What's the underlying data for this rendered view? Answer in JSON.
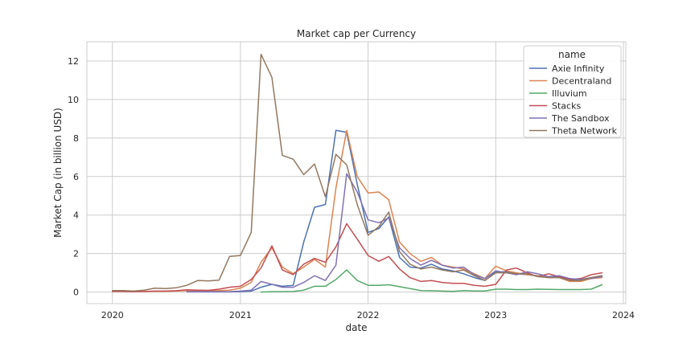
{
  "chart_data": {
    "type": "line",
    "title": "Market cap per Currency",
    "xlabel": "date",
    "ylabel": "Market Cap (in billion USD)",
    "xlim": [
      "2019-10-20",
      "2024-01-08"
    ],
    "ylim": [
      -0.6,
      13.0
    ],
    "x_ticks": [
      "2020",
      "2021",
      "2022",
      "2023",
      "2024"
    ],
    "y_ticks": [
      "0",
      "2",
      "4",
      "6",
      "8",
      "10",
      "12"
    ],
    "grid": true,
    "legend": {
      "title": "name",
      "placement": "top-right"
    },
    "series": [
      {
        "name": "Axie Infinity",
        "color": "#4c72b0",
        "points": [
          [
            "2020-08-01",
            0.01
          ],
          [
            "2020-09-01",
            0.01
          ],
          [
            "2020-10-01",
            0.01
          ],
          [
            "2020-11-01",
            0.01
          ],
          [
            "2020-12-01",
            0.01
          ],
          [
            "2021-01-01",
            0.02
          ],
          [
            "2021-02-01",
            0.05
          ],
          [
            "2021-03-01",
            0.25
          ],
          [
            "2021-04-01",
            0.4
          ],
          [
            "2021-05-01",
            0.3
          ],
          [
            "2021-06-01",
            0.35
          ],
          [
            "2021-07-01",
            2.6
          ],
          [
            "2021-08-01",
            4.4
          ],
          [
            "2021-09-01",
            4.55
          ],
          [
            "2021-10-01",
            8.4
          ],
          [
            "2021-11-01",
            8.3
          ],
          [
            "2021-12-01",
            5.6
          ],
          [
            "2022-01-01",
            3.1
          ],
          [
            "2022-02-01",
            3.3
          ],
          [
            "2022-03-01",
            3.9
          ],
          [
            "2022-04-01",
            1.8
          ],
          [
            "2022-05-01",
            1.3
          ],
          [
            "2022-06-01",
            1.25
          ],
          [
            "2022-07-01",
            1.45
          ],
          [
            "2022-08-01",
            1.2
          ],
          [
            "2022-09-01",
            1.1
          ],
          [
            "2022-10-01",
            0.95
          ],
          [
            "2022-11-01",
            0.75
          ],
          [
            "2022-12-01",
            0.6
          ],
          [
            "2023-01-01",
            1.05
          ],
          [
            "2023-02-01",
            1.05
          ],
          [
            "2023-03-01",
            0.95
          ],
          [
            "2023-04-01",
            0.9
          ],
          [
            "2023-05-01",
            0.85
          ],
          [
            "2023-06-01",
            0.8
          ],
          [
            "2023-07-01",
            0.8
          ],
          [
            "2023-08-01",
            0.65
          ],
          [
            "2023-09-01",
            0.65
          ],
          [
            "2023-10-01",
            0.75
          ],
          [
            "2023-11-01",
            0.85
          ]
        ]
      },
      {
        "name": "Decentraland",
        "color": "#dd8452",
        "points": [
          [
            "2020-01-01",
            0.03
          ],
          [
            "2020-02-01",
            0.03
          ],
          [
            "2020-03-01",
            0.02
          ],
          [
            "2020-04-01",
            0.03
          ],
          [
            "2020-05-01",
            0.04
          ],
          [
            "2020-06-01",
            0.04
          ],
          [
            "2020-07-01",
            0.05
          ],
          [
            "2020-08-01",
            0.08
          ],
          [
            "2020-09-01",
            0.08
          ],
          [
            "2020-10-01",
            0.07
          ],
          [
            "2020-11-01",
            0.08
          ],
          [
            "2020-12-01",
            0.1
          ],
          [
            "2021-01-01",
            0.2
          ],
          [
            "2021-02-01",
            0.5
          ],
          [
            "2021-03-01",
            1.55
          ],
          [
            "2021-04-01",
            2.3
          ],
          [
            "2021-05-01",
            1.3
          ],
          [
            "2021-06-01",
            0.95
          ],
          [
            "2021-07-01",
            1.3
          ],
          [
            "2021-08-01",
            1.7
          ],
          [
            "2021-09-01",
            1.3
          ],
          [
            "2021-10-01",
            5.4
          ],
          [
            "2021-11-01",
            8.4
          ],
          [
            "2021-12-01",
            6.0
          ],
          [
            "2022-01-01",
            5.15
          ],
          [
            "2022-02-01",
            5.2
          ],
          [
            "2022-03-01",
            4.8
          ],
          [
            "2022-04-01",
            2.6
          ],
          [
            "2022-05-01",
            2.0
          ],
          [
            "2022-06-01",
            1.6
          ],
          [
            "2022-07-01",
            1.8
          ],
          [
            "2022-08-01",
            1.4
          ],
          [
            "2022-09-01",
            1.3
          ],
          [
            "2022-10-01",
            1.2
          ],
          [
            "2022-11-01",
            0.95
          ],
          [
            "2022-12-01",
            0.7
          ],
          [
            "2023-01-01",
            1.35
          ],
          [
            "2023-02-01",
            1.1
          ],
          [
            "2023-03-01",
            1.0
          ],
          [
            "2023-04-01",
            0.9
          ],
          [
            "2023-05-01",
            0.85
          ],
          [
            "2023-06-01",
            0.75
          ],
          [
            "2023-07-01",
            0.75
          ],
          [
            "2023-08-01",
            0.55
          ],
          [
            "2023-09-01",
            0.55
          ],
          [
            "2023-10-01",
            0.7
          ],
          [
            "2023-11-01",
            0.75
          ]
        ]
      },
      {
        "name": "Illuvium",
        "color": "#55a868",
        "points": [
          [
            "2021-03-01",
            0.0
          ],
          [
            "2021-04-01",
            0.02
          ],
          [
            "2021-05-01",
            0.02
          ],
          [
            "2021-06-01",
            0.03
          ],
          [
            "2021-07-01",
            0.1
          ],
          [
            "2021-08-01",
            0.3
          ],
          [
            "2021-09-01",
            0.3
          ],
          [
            "2021-10-01",
            0.65
          ],
          [
            "2021-11-01",
            1.15
          ],
          [
            "2021-12-01",
            0.6
          ],
          [
            "2022-01-01",
            0.35
          ],
          [
            "2022-02-01",
            0.35
          ],
          [
            "2022-03-01",
            0.38
          ],
          [
            "2022-04-01",
            0.28
          ],
          [
            "2022-05-01",
            0.18
          ],
          [
            "2022-06-01",
            0.08
          ],
          [
            "2022-07-01",
            0.07
          ],
          [
            "2022-08-01",
            0.05
          ],
          [
            "2022-09-01",
            0.04
          ],
          [
            "2022-10-01",
            0.08
          ],
          [
            "2022-11-01",
            0.06
          ],
          [
            "2022-12-01",
            0.06
          ],
          [
            "2023-01-01",
            0.15
          ],
          [
            "2023-02-01",
            0.15
          ],
          [
            "2023-03-01",
            0.13
          ],
          [
            "2023-04-01",
            0.13
          ],
          [
            "2023-05-01",
            0.15
          ],
          [
            "2023-06-01",
            0.14
          ],
          [
            "2023-07-01",
            0.13
          ],
          [
            "2023-08-01",
            0.13
          ],
          [
            "2023-09-01",
            0.13
          ],
          [
            "2023-10-01",
            0.15
          ],
          [
            "2023-11-01",
            0.38
          ]
        ]
      },
      {
        "name": "Stacks",
        "color": "#c44e52",
        "points": [
          [
            "2020-01-01",
            0.04
          ],
          [
            "2020-02-01",
            0.03
          ],
          [
            "2020-03-01",
            0.02
          ],
          [
            "2020-04-01",
            0.03
          ],
          [
            "2020-05-01",
            0.05
          ],
          [
            "2020-06-01",
            0.05
          ],
          [
            "2020-07-01",
            0.07
          ],
          [
            "2020-08-01",
            0.12
          ],
          [
            "2020-09-01",
            0.1
          ],
          [
            "2020-10-01",
            0.09
          ],
          [
            "2020-11-01",
            0.15
          ],
          [
            "2020-12-01",
            0.25
          ],
          [
            "2021-01-01",
            0.3
          ],
          [
            "2021-02-01",
            0.65
          ],
          [
            "2021-03-01",
            1.25
          ],
          [
            "2021-04-01",
            2.4
          ],
          [
            "2021-05-01",
            1.15
          ],
          [
            "2021-06-01",
            0.9
          ],
          [
            "2021-07-01",
            1.45
          ],
          [
            "2021-08-01",
            1.75
          ],
          [
            "2021-09-01",
            1.55
          ],
          [
            "2021-10-01",
            2.35
          ],
          [
            "2021-11-01",
            3.55
          ],
          [
            "2021-12-01",
            2.75
          ],
          [
            "2022-01-01",
            1.9
          ],
          [
            "2022-02-01",
            1.6
          ],
          [
            "2022-03-01",
            1.85
          ],
          [
            "2022-04-01",
            1.2
          ],
          [
            "2022-05-01",
            0.75
          ],
          [
            "2022-06-01",
            0.55
          ],
          [
            "2022-07-01",
            0.6
          ],
          [
            "2022-08-01",
            0.5
          ],
          [
            "2022-09-01",
            0.45
          ],
          [
            "2022-10-01",
            0.45
          ],
          [
            "2022-11-01",
            0.35
          ],
          [
            "2022-12-01",
            0.3
          ],
          [
            "2023-01-01",
            0.4
          ],
          [
            "2023-02-01",
            1.15
          ],
          [
            "2023-03-01",
            1.25
          ],
          [
            "2023-04-01",
            1.0
          ],
          [
            "2023-05-01",
            0.8
          ],
          [
            "2023-06-01",
            0.95
          ],
          [
            "2023-07-01",
            0.8
          ],
          [
            "2023-08-01",
            0.65
          ],
          [
            "2023-09-01",
            0.7
          ],
          [
            "2023-10-01",
            0.9
          ],
          [
            "2023-11-01",
            1.0
          ]
        ]
      },
      {
        "name": "The Sandbox",
        "color": "#8172b3",
        "points": [
          [
            "2020-08-01",
            0.02
          ],
          [
            "2020-09-01",
            0.02
          ],
          [
            "2020-10-01",
            0.02
          ],
          [
            "2020-11-01",
            0.02
          ],
          [
            "2020-12-01",
            0.02
          ],
          [
            "2021-01-01",
            0.05
          ],
          [
            "2021-02-01",
            0.1
          ],
          [
            "2021-03-01",
            0.55
          ],
          [
            "2021-04-01",
            0.4
          ],
          [
            "2021-05-01",
            0.25
          ],
          [
            "2021-06-01",
            0.25
          ],
          [
            "2021-07-01",
            0.5
          ],
          [
            "2021-08-01",
            0.85
          ],
          [
            "2021-09-01",
            0.6
          ],
          [
            "2021-10-01",
            1.4
          ],
          [
            "2021-11-01",
            6.15
          ],
          [
            "2021-12-01",
            5.2
          ],
          [
            "2022-01-01",
            3.75
          ],
          [
            "2022-02-01",
            3.6
          ],
          [
            "2022-03-01",
            3.85
          ],
          [
            "2022-04-01",
            2.3
          ],
          [
            "2022-05-01",
            1.75
          ],
          [
            "2022-06-01",
            1.4
          ],
          [
            "2022-07-01",
            1.65
          ],
          [
            "2022-08-01",
            1.4
          ],
          [
            "2022-09-01",
            1.25
          ],
          [
            "2022-10-01",
            1.3
          ],
          [
            "2022-11-01",
            0.9
          ],
          [
            "2022-12-01",
            0.7
          ],
          [
            "2023-01-01",
            1.1
          ],
          [
            "2023-02-01",
            1.0
          ],
          [
            "2023-03-01",
            0.9
          ],
          [
            "2023-04-01",
            1.05
          ],
          [
            "2023-05-01",
            0.95
          ],
          [
            "2023-06-01",
            0.8
          ],
          [
            "2023-07-01",
            0.85
          ],
          [
            "2023-08-01",
            0.7
          ],
          [
            "2023-09-01",
            0.65
          ],
          [
            "2023-10-01",
            0.7
          ],
          [
            "2023-11-01",
            0.8
          ]
        ]
      },
      {
        "name": "Theta Network",
        "color": "#937860",
        "points": [
          [
            "2020-01-01",
            0.08
          ],
          [
            "2020-02-01",
            0.08
          ],
          [
            "2020-03-01",
            0.05
          ],
          [
            "2020-04-01",
            0.1
          ],
          [
            "2020-05-01",
            0.2
          ],
          [
            "2020-06-01",
            0.18
          ],
          [
            "2020-07-01",
            0.22
          ],
          [
            "2020-08-01",
            0.35
          ],
          [
            "2020-09-01",
            0.6
          ],
          [
            "2020-10-01",
            0.58
          ],
          [
            "2020-11-01",
            0.62
          ],
          [
            "2020-12-01",
            1.85
          ],
          [
            "2021-01-01",
            1.9
          ],
          [
            "2021-02-01",
            3.1
          ],
          [
            "2021-03-01",
            12.35
          ],
          [
            "2021-04-01",
            11.15
          ],
          [
            "2021-05-01",
            7.1
          ],
          [
            "2021-06-01",
            6.9
          ],
          [
            "2021-07-01",
            6.1
          ],
          [
            "2021-08-01",
            6.65
          ],
          [
            "2021-09-01",
            4.95
          ],
          [
            "2021-10-01",
            7.15
          ],
          [
            "2021-11-01",
            6.6
          ],
          [
            "2021-12-01",
            4.55
          ],
          [
            "2022-01-01",
            2.95
          ],
          [
            "2022-02-01",
            3.4
          ],
          [
            "2022-03-01",
            4.15
          ],
          [
            "2022-04-01",
            2.1
          ],
          [
            "2022-05-01",
            1.45
          ],
          [
            "2022-06-01",
            1.2
          ],
          [
            "2022-07-01",
            1.3
          ],
          [
            "2022-08-01",
            1.15
          ],
          [
            "2022-09-01",
            1.05
          ],
          [
            "2022-10-01",
            1.15
          ],
          [
            "2022-11-01",
            0.85
          ],
          [
            "2022-12-01",
            0.6
          ],
          [
            "2023-01-01",
            1.0
          ],
          [
            "2023-02-01",
            1.0
          ],
          [
            "2023-03-01",
            0.95
          ],
          [
            "2023-04-01",
            0.95
          ],
          [
            "2023-05-01",
            0.8
          ],
          [
            "2023-06-01",
            0.75
          ],
          [
            "2023-07-01",
            0.75
          ],
          [
            "2023-08-01",
            0.6
          ],
          [
            "2023-09-01",
            0.6
          ],
          [
            "2023-10-01",
            0.75
          ],
          [
            "2023-11-01",
            0.85
          ]
        ]
      }
    ]
  }
}
